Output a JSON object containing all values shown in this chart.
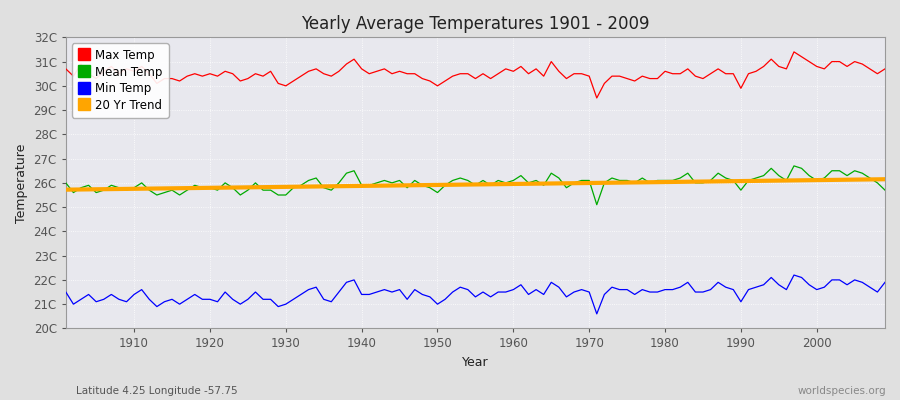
{
  "title": "Yearly Average Temperatures 1901 - 2009",
  "xlabel": "Year",
  "ylabel": "Temperature",
  "subtitle_left": "Latitude 4.25 Longitude -57.75",
  "subtitle_right": "worldspecies.org",
  "xlim": [
    1901,
    2009
  ],
  "ylim": [
    20,
    32
  ],
  "yticks": [
    20,
    21,
    22,
    23,
    24,
    25,
    26,
    27,
    28,
    29,
    30,
    31,
    32
  ],
  "ytick_labels": [
    "20C",
    "21C",
    "22C",
    "23C",
    "24C",
    "25C",
    "26C",
    "27C",
    "28C",
    "29C",
    "30C",
    "31C",
    "32C"
  ],
  "xticks": [
    1910,
    1920,
    1930,
    1940,
    1950,
    1960,
    1970,
    1980,
    1990,
    2000
  ],
  "legend_entries": [
    "Max Temp",
    "Mean Temp",
    "Min Temp",
    "20 Yr Trend"
  ],
  "colors": {
    "max": "#ff0000",
    "mean": "#00aa00",
    "min": "#0000ff",
    "trend": "#ffa500",
    "fig_bg": "#e0e0e0",
    "plot_bg": "#e8e8ee",
    "grid": "#ffffff"
  },
  "years": [
    1901,
    1902,
    1903,
    1904,
    1905,
    1906,
    1907,
    1908,
    1909,
    1910,
    1911,
    1912,
    1913,
    1914,
    1915,
    1916,
    1917,
    1918,
    1919,
    1920,
    1921,
    1922,
    1923,
    1924,
    1925,
    1926,
    1927,
    1928,
    1929,
    1930,
    1931,
    1932,
    1933,
    1934,
    1935,
    1936,
    1937,
    1938,
    1939,
    1940,
    1941,
    1942,
    1943,
    1944,
    1945,
    1946,
    1947,
    1948,
    1949,
    1950,
    1951,
    1952,
    1953,
    1954,
    1955,
    1956,
    1957,
    1958,
    1959,
    1960,
    1961,
    1962,
    1963,
    1964,
    1965,
    1966,
    1967,
    1968,
    1969,
    1970,
    1971,
    1972,
    1973,
    1974,
    1975,
    1976,
    1977,
    1978,
    1979,
    1980,
    1981,
    1982,
    1983,
    1984,
    1985,
    1986,
    1987,
    1988,
    1989,
    1990,
    1991,
    1992,
    1993,
    1994,
    1995,
    1996,
    1997,
    1998,
    1999,
    2000,
    2001,
    2002,
    2003,
    2004,
    2005,
    2006,
    2007,
    2008,
    2009
  ],
  "max_temp": [
    30.7,
    30.4,
    30.9,
    30.5,
    30.3,
    30.6,
    30.8,
    30.5,
    30.7,
    30.6,
    30.8,
    30.5,
    30.1,
    30.3,
    30.3,
    30.2,
    30.4,
    30.5,
    30.4,
    30.5,
    30.4,
    30.6,
    30.5,
    30.2,
    30.3,
    30.5,
    30.4,
    30.6,
    30.1,
    30.0,
    30.2,
    30.4,
    30.6,
    30.7,
    30.5,
    30.4,
    30.6,
    30.9,
    31.1,
    30.7,
    30.5,
    30.6,
    30.7,
    30.5,
    30.6,
    30.5,
    30.5,
    30.3,
    30.2,
    30.0,
    30.2,
    30.4,
    30.5,
    30.5,
    30.3,
    30.5,
    30.3,
    30.5,
    30.7,
    30.6,
    30.8,
    30.5,
    30.7,
    30.4,
    31.0,
    30.6,
    30.3,
    30.5,
    30.5,
    30.4,
    29.5,
    30.1,
    30.4,
    30.4,
    30.3,
    30.2,
    30.4,
    30.3,
    30.3,
    30.6,
    30.5,
    30.5,
    30.7,
    30.4,
    30.3,
    30.5,
    30.7,
    30.5,
    30.5,
    29.9,
    30.5,
    30.6,
    30.8,
    31.1,
    30.8,
    30.7,
    31.4,
    31.2,
    31.0,
    30.8,
    30.7,
    31.0,
    31.0,
    30.8,
    31.0,
    30.9,
    30.7,
    30.5,
    30.7
  ],
  "mean_temp": [
    26.0,
    25.6,
    25.8,
    25.9,
    25.6,
    25.7,
    25.9,
    25.8,
    25.7,
    25.8,
    26.0,
    25.7,
    25.5,
    25.6,
    25.7,
    25.5,
    25.7,
    25.9,
    25.8,
    25.8,
    25.7,
    26.0,
    25.8,
    25.5,
    25.7,
    26.0,
    25.7,
    25.7,
    25.5,
    25.5,
    25.8,
    25.9,
    26.1,
    26.2,
    25.8,
    25.7,
    26.0,
    26.4,
    26.5,
    25.9,
    25.9,
    26.0,
    26.1,
    26.0,
    26.1,
    25.8,
    26.1,
    25.9,
    25.8,
    25.6,
    25.9,
    26.1,
    26.2,
    26.1,
    25.9,
    26.1,
    25.9,
    26.1,
    26.0,
    26.1,
    26.3,
    26.0,
    26.1,
    25.9,
    26.4,
    26.2,
    25.8,
    26.0,
    26.1,
    26.1,
    25.1,
    26.0,
    26.2,
    26.1,
    26.1,
    26.0,
    26.2,
    26.0,
    26.1,
    26.1,
    26.1,
    26.2,
    26.4,
    26.0,
    26.0,
    26.1,
    26.4,
    26.2,
    26.1,
    25.7,
    26.1,
    26.2,
    26.3,
    26.6,
    26.3,
    26.1,
    26.7,
    26.6,
    26.3,
    26.1,
    26.2,
    26.5,
    26.5,
    26.3,
    26.5,
    26.4,
    26.2,
    26.0,
    25.7
  ],
  "min_temp": [
    21.5,
    21.0,
    21.2,
    21.4,
    21.1,
    21.2,
    21.4,
    21.2,
    21.1,
    21.4,
    21.6,
    21.2,
    20.9,
    21.1,
    21.2,
    21.0,
    21.2,
    21.4,
    21.2,
    21.2,
    21.1,
    21.5,
    21.2,
    21.0,
    21.2,
    21.5,
    21.2,
    21.2,
    20.9,
    21.0,
    21.2,
    21.4,
    21.6,
    21.7,
    21.2,
    21.1,
    21.5,
    21.9,
    22.0,
    21.4,
    21.4,
    21.5,
    21.6,
    21.5,
    21.6,
    21.2,
    21.6,
    21.4,
    21.3,
    21.0,
    21.2,
    21.5,
    21.7,
    21.6,
    21.3,
    21.5,
    21.3,
    21.5,
    21.5,
    21.6,
    21.8,
    21.4,
    21.6,
    21.4,
    21.9,
    21.7,
    21.3,
    21.5,
    21.6,
    21.5,
    20.6,
    21.4,
    21.7,
    21.6,
    21.6,
    21.4,
    21.6,
    21.5,
    21.5,
    21.6,
    21.6,
    21.7,
    21.9,
    21.5,
    21.5,
    21.6,
    21.9,
    21.7,
    21.6,
    21.1,
    21.6,
    21.7,
    21.8,
    22.1,
    21.8,
    21.6,
    22.2,
    22.1,
    21.8,
    21.6,
    21.7,
    22.0,
    22.0,
    21.8,
    22.0,
    21.9,
    21.7,
    21.5,
    21.9
  ],
  "trend_x": [
    1901,
    2009
  ],
  "trend_y": [
    25.72,
    26.15
  ]
}
